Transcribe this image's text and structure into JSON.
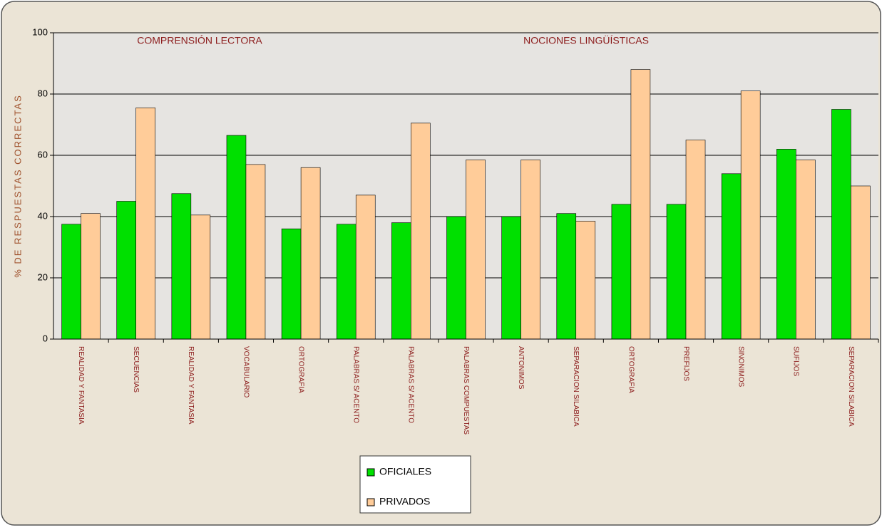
{
  "chart_data": {
    "type": "bar",
    "annotations": [
      "COMPRENSIÓN LECTORA",
      "NOCIONES LINGÜÍSTICAS"
    ],
    "y_axis_label": "% DE RESPUESTAS CORRECTAS",
    "categories": [
      "REALIDAD Y FANTASIA",
      "SECUENCIAS",
      "REALIDAD Y FANTASIA",
      "VOCABULARIO",
      "ORTOGRAFIA",
      "PALABRAS S/ ACENTO",
      "PALABRAS S/ ACENTO",
      "PALABRAS COMPUESTAS",
      "ANTONIMOS",
      "SEPARACION SILABICA",
      "ORTOGRAFIA",
      "PREFIJOS",
      "SINONIMOS",
      "SUFIJOS",
      "SEPARACION SILABICA"
    ],
    "series": [
      {
        "name": "OFICIALES",
        "color": "#00e000",
        "values": [
          37.5,
          45,
          47.5,
          66.5,
          36,
          37.5,
          38,
          40,
          40,
          41,
          44,
          44,
          54,
          62,
          75
        ]
      },
      {
        "name": "PRIVADOS",
        "color": "#ffcc99",
        "values": [
          41,
          75.5,
          40.5,
          57,
          56,
          47,
          70.5,
          58.5,
          58.5,
          38.5,
          88,
          65,
          81,
          58.5,
          50
        ]
      }
    ],
    "ylim": [
      0,
      100
    ],
    "yticks": [
      0,
      20,
      40,
      60,
      80,
      100
    ],
    "grid": true,
    "legend": "bottom"
  }
}
